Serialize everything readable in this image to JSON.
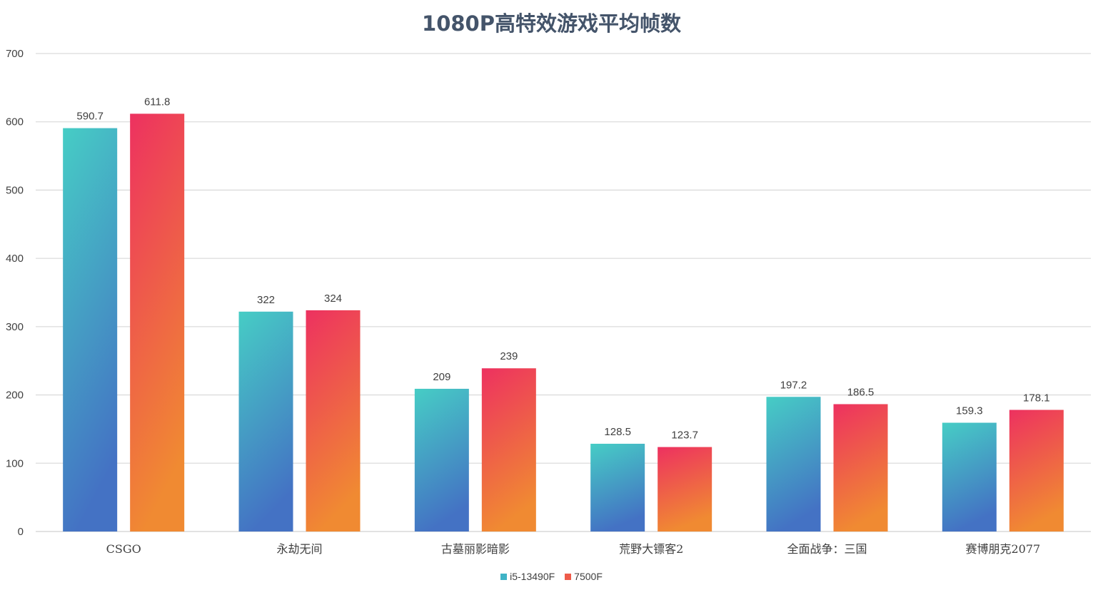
{
  "chart_data": {
    "type": "bar",
    "title": "1080P高特效游戏平均帧数",
    "categories": [
      "CSGO",
      "永劫无间",
      "古墓丽影暗影",
      "荒野大镖客2",
      "全面战争：三国",
      "赛博朋克2077"
    ],
    "series": [
      {
        "name": "i5-13490F",
        "values": [
          590.7,
          322,
          209,
          128.5,
          197.2,
          159.3
        ],
        "gradient": [
          "#46cdc5",
          "#4472c4"
        ],
        "legend_color": "#3fb3c6"
      },
      {
        "name": "7500F",
        "values": [
          611.8,
          324,
          239,
          123.7,
          186.5,
          178.1
        ],
        "gradient": [
          "#ed3160",
          "#f08a32"
        ],
        "legend_color": "#ee5b4a"
      }
    ],
    "ylim": [
      0,
      700
    ],
    "yticks": [
      0,
      100,
      200,
      300,
      400,
      500,
      600,
      700
    ],
    "grid": true,
    "legend_position": "bottom"
  }
}
